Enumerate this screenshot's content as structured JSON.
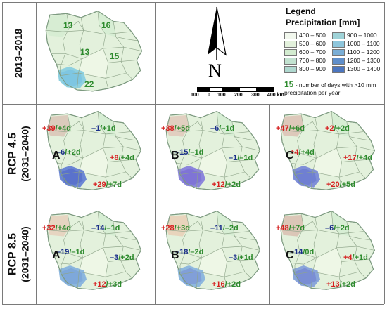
{
  "rows": [
    {
      "title": "2013–2018",
      "subtitle": ""
    },
    {
      "title": "RCP 4.5",
      "subtitle": "(2031–2040)"
    },
    {
      "title": "RCP 8.5",
      "subtitle": "(2031–2040)"
    }
  ],
  "baseline_counts": [
    "13",
    "16",
    "13",
    "15",
    "22"
  ],
  "panels": [
    {
      "letter": "A",
      "labels": [
        "+39/+4d",
        "–1/+1d",
        "–6/+2d",
        "+8/+4d",
        "+29/+7d"
      ]
    },
    {
      "letter": "B",
      "labels": [
        "+38/+5d",
        "–6/–1d",
        "–15/–1d",
        "–1/–1d",
        "+12/+2d"
      ]
    },
    {
      "letter": "C",
      "labels": [
        "+47/+6d",
        "+2/+2d",
        "+4/+4d",
        "+17/+4d",
        "+20/+5d"
      ]
    },
    {
      "letter": "A",
      "labels": [
        "+32/+4d",
        "–14/–1d",
        "–19/–1d",
        "–3/+2d",
        "+12/+3d"
      ]
    },
    {
      "letter": "B",
      "labels": [
        "+28/+3d",
        "–11/–2d",
        "–18/–2d",
        "–3/+1d",
        "+16/+2d"
      ]
    },
    {
      "letter": "C",
      "labels": [
        "+48/+7d",
        "–6/+2d",
        "–14/0d",
        "+4/+1d",
        "+13/+2d"
      ]
    }
  ],
  "legend": {
    "title": "Legend",
    "subtitle": "Precipitation [mm]",
    "left_classes": [
      {
        "label": "400 – 500",
        "color": "#f2f8ee"
      },
      {
        "label": "500 – 600",
        "color": "#e3f1dc"
      },
      {
        "label": "600 – 700",
        "color": "#d3ecd0"
      },
      {
        "label": "700 – 800",
        "color": "#c2e2d0"
      },
      {
        "label": "800 – 900",
        "color": "#afd8cf"
      }
    ],
    "right_classes": [
      {
        "label": "900 – 1000",
        "color": "#9fd3d8"
      },
      {
        "label": "1000 – 1100",
        "color": "#8ec6dc"
      },
      {
        "label": "1100 – 1200",
        "color": "#7aaed6"
      },
      {
        "label": "1200 – 1300",
        "color": "#5f8fcb"
      },
      {
        "label": "1300 – 1400",
        "color": "#4b76c0"
      }
    ],
    "note_number": "15",
    "note_text": " - number of days with >10 mm precipitation per year"
  },
  "north_letter": "N",
  "scale": {
    "ticks": [
      "100",
      "0",
      "100",
      "200",
      "300",
      "400 km"
    ]
  },
  "colors": {
    "positive": "#d62020",
    "negative": "#1a2f8a",
    "days": "#2e8b2e",
    "base": "#e3f1dc",
    "border": "#8fa58a",
    "purple": "#8a78d8",
    "blue_hot": "#5d8fd2"
  }
}
